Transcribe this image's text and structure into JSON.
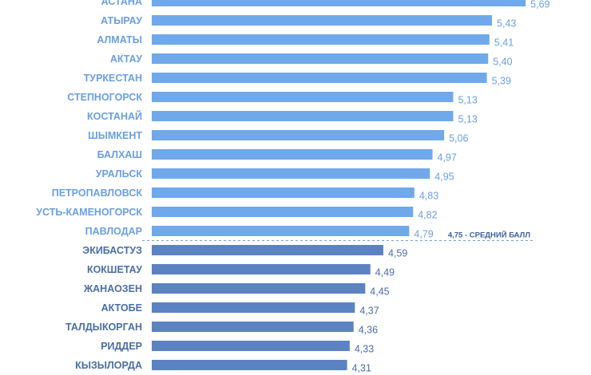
{
  "chart_data": {
    "type": "bar",
    "orientation": "horizontal",
    "categories": [
      "АСТАНА",
      "АТЫРАУ",
      "АЛМАТЫ",
      "АКТАУ",
      "ТУРКЕСТАН",
      "СТЕПНОГОРСК",
      "КОСТАНАЙ",
      "ШЫМКЕНТ",
      "БАЛХАШ",
      "УРАЛЬСК",
      "ПЕТРОПАВЛОВСК",
      "УСТЬ-КАМЕНОГОРСК",
      "ПАВЛОДАР",
      "ЭКИБАСТУЗ",
      "КОКШЕТАУ",
      "ЖАНАОЗЕН",
      "АКТОБЕ",
      "ТАЛДЫКОРГАН",
      "РИДДЕР",
      "КЫЗЫЛОРДА"
    ],
    "values": [
      5.69,
      5.43,
      5.41,
      5.4,
      5.39,
      5.13,
      5.13,
      5.06,
      4.97,
      4.95,
      4.83,
      4.82,
      4.79,
      4.59,
      4.49,
      4.45,
      4.37,
      4.36,
      4.33,
      4.31
    ],
    "value_labels": [
      "5,69",
      "5,43",
      "5,41",
      "5,40",
      "5,39",
      "5,13",
      "5,13",
      "5,06",
      "4,97",
      "4,95",
      "4,83",
      "4,82",
      "4,79",
      "4,59",
      "4,49",
      "4,45",
      "4,37",
      "4,36",
      "4,33",
      "4,31"
    ],
    "reference_line": {
      "value": 4.75,
      "label": "4,75 - СРЕДНИЙ БАЛЛ"
    },
    "colors": {
      "above_average_bar": "#6fa9ec",
      "below_average_bar": "#5b83c2",
      "above_average_text": "#6a9fe2",
      "below_average_text": "#4a6ea6"
    }
  }
}
